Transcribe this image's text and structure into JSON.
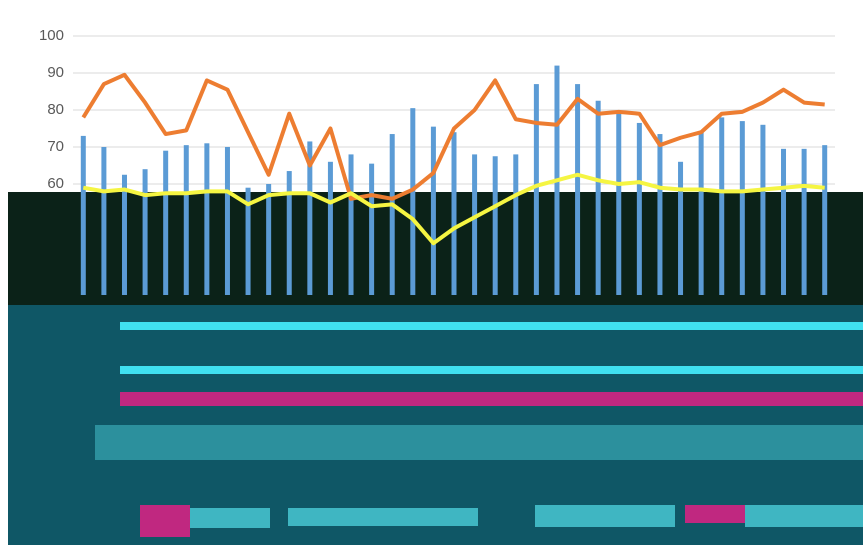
{
  "chart_data": {
    "type": "combo",
    "ylim": [
      30,
      100
    ],
    "yticks": [
      60,
      70,
      80,
      90,
      100
    ],
    "grid": true,
    "series": [
      {
        "type": "bar",
        "color": "#5b9bd5",
        "values": [
          73,
          70,
          62.5,
          64,
          69,
          70.5,
          71,
          70,
          59,
          60,
          63.5,
          71.5,
          66,
          68,
          65.5,
          73.5,
          80.5,
          75.5,
          74,
          68,
          67.5,
          68,
          87,
          92,
          87,
          82.5,
          79,
          76.5,
          73.5,
          66,
          74,
          78,
          77,
          76,
          69.5,
          69.5,
          70.5
        ]
      },
      {
        "type": "line",
        "color": "#ed7d31",
        "values": [
          78,
          87,
          89.5,
          82,
          73.5,
          74.5,
          88,
          85.5,
          74,
          62.5,
          79,
          65,
          75,
          56,
          57,
          56,
          58.5,
          63,
          75,
          80,
          88,
          77.5,
          76.5,
          76,
          83,
          79,
          79.5,
          79,
          70.5,
          72.5,
          74,
          79,
          79.5,
          82,
          85.5,
          82,
          81.5
        ]
      },
      {
        "type": "line",
        "color": "#f5f542",
        "values": [
          59,
          58,
          58.5,
          57,
          57.5,
          57.5,
          58,
          58,
          54.5,
          57,
          57.5,
          57.5,
          55,
          57.5,
          54,
          54.5,
          50.5,
          44,
          48,
          51,
          54,
          57,
          59.5,
          61,
          62.5,
          61,
          60,
          60.5,
          59,
          58.5,
          58.5,
          58,
          58,
          58.5,
          59,
          59.5,
          59
        ]
      }
    ]
  }
}
